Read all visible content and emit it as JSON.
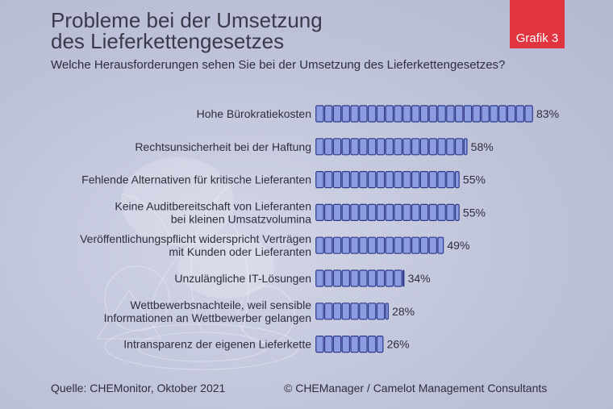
{
  "header": {
    "title_line1": "Probleme bei der Umsetzung",
    "title_line2": "des Lieferkettengesetzes",
    "subtitle": "Welche Herausforderungen sehen Sie bei der Umsetzung des Lieferkettengesetzes?",
    "badge": "Grafik 3"
  },
  "chart_data": {
    "type": "bar",
    "orientation": "horizontal",
    "title": "Probleme bei der Umsetzung des Lieferkettengesetzes",
    "subtitle": "Welche Herausforderungen sehen Sie bei der Umsetzung des Lieferkettengesetzes?",
    "categories": [
      [
        "Hohe Bürokratiekosten"
      ],
      [
        "Rechtsunsicherheit bei der Haftung"
      ],
      [
        "Fehlende Alternativen für kritische Lieferanten"
      ],
      [
        "Keine Auditbereitschaft von Lieferanten",
        "bei kleinen Umsatzvolumina"
      ],
      [
        "Veröffentlichungspflicht widerspricht Verträgen",
        "mit Kunden oder Lieferanten"
      ],
      [
        "Unzulängliche IT-Lösungen"
      ],
      [
        "Wettbewerbsnachteile, weil sensible",
        "Informationen an Wettbewerber gelangen"
      ],
      [
        "Intransparenz der eigenen Lieferkette"
      ]
    ],
    "values": [
      83,
      58,
      55,
      55,
      49,
      34,
      28,
      26
    ],
    "value_labels": [
      "83%",
      "58%",
      "55%",
      "55%",
      "49%",
      "34%",
      "28%",
      "26%"
    ],
    "unit": "%",
    "xlim": [
      0,
      83
    ],
    "colors": {
      "bar_fill": "#8b9de0",
      "bar_stroke": "#2f3a8a",
      "text": "#2e2e3c"
    }
  },
  "footer": {
    "source": "Quelle: CHEMonitor, Oktober 2021",
    "copyright": "© CHEManager / Camelot Management Consultants"
  }
}
